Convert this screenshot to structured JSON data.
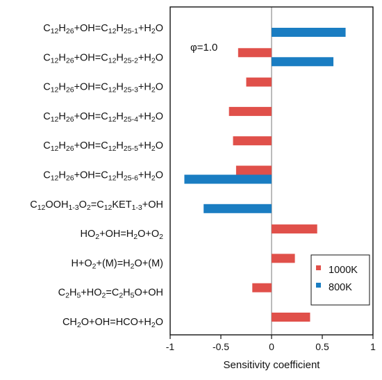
{
  "chart_data": {
    "type": "bar",
    "orientation": "horizontal",
    "title": "",
    "xlabel": "Sensitivity coefficient",
    "ylabel": "",
    "xlim": [
      -1,
      1
    ],
    "xticks": [
      "-1",
      "-0.5",
      "0",
      "0.5",
      "1"
    ],
    "annotation": "φ=1.0",
    "legend_position": "bottom-right",
    "categories": [
      [
        {
          "t": "C"
        },
        {
          "t": "12",
          "s": "sub"
        },
        {
          "t": "H"
        },
        {
          "t": "26",
          "s": "sub"
        },
        {
          "t": "+OH=C"
        },
        {
          "t": "12",
          "s": "sub"
        },
        {
          "t": "H"
        },
        {
          "t": "25-1",
          "s": "sub"
        },
        {
          "t": "+H"
        },
        {
          "t": "2",
          "s": "sub"
        },
        {
          "t": "O"
        }
      ],
      [
        {
          "t": "C"
        },
        {
          "t": "12",
          "s": "sub"
        },
        {
          "t": "H"
        },
        {
          "t": "26",
          "s": "sub"
        },
        {
          "t": "+OH=C"
        },
        {
          "t": "12",
          "s": "sub"
        },
        {
          "t": "H"
        },
        {
          "t": "25-2",
          "s": "sub"
        },
        {
          "t": "+H"
        },
        {
          "t": "2",
          "s": "sub"
        },
        {
          "t": "O"
        }
      ],
      [
        {
          "t": "C"
        },
        {
          "t": "12",
          "s": "sub"
        },
        {
          "t": "H"
        },
        {
          "t": "26",
          "s": "sub"
        },
        {
          "t": "+OH=C"
        },
        {
          "t": "12",
          "s": "sub"
        },
        {
          "t": "H"
        },
        {
          "t": "25-3",
          "s": "sub"
        },
        {
          "t": "+H"
        },
        {
          "t": "2",
          "s": "sub"
        },
        {
          "t": "O"
        }
      ],
      [
        {
          "t": "C"
        },
        {
          "t": "12",
          "s": "sub"
        },
        {
          "t": "H"
        },
        {
          "t": "26",
          "s": "sub"
        },
        {
          "t": "+OH=C"
        },
        {
          "t": "12",
          "s": "sub"
        },
        {
          "t": "H"
        },
        {
          "t": "25-4",
          "s": "sub"
        },
        {
          "t": "+H"
        },
        {
          "t": "2",
          "s": "sub"
        },
        {
          "t": "O"
        }
      ],
      [
        {
          "t": "C"
        },
        {
          "t": "12",
          "s": "sub"
        },
        {
          "t": "H"
        },
        {
          "t": "26",
          "s": "sub"
        },
        {
          "t": "+OH=C"
        },
        {
          "t": "12",
          "s": "sub"
        },
        {
          "t": "H"
        },
        {
          "t": "25-5",
          "s": "sub"
        },
        {
          "t": "+H"
        },
        {
          "t": "2",
          "s": "sub"
        },
        {
          "t": "O"
        }
      ],
      [
        {
          "t": "C"
        },
        {
          "t": "12",
          "s": "sub"
        },
        {
          "t": "H"
        },
        {
          "t": "26",
          "s": "sub"
        },
        {
          "t": "+OH=C"
        },
        {
          "t": "12",
          "s": "sub"
        },
        {
          "t": "H"
        },
        {
          "t": "25-6",
          "s": "sub"
        },
        {
          "t": "+H"
        },
        {
          "t": "2",
          "s": "sub"
        },
        {
          "t": "O"
        }
      ],
      [
        {
          "t": "C"
        },
        {
          "t": "12",
          "s": "sub"
        },
        {
          "t": "OOH"
        },
        {
          "t": "1-3",
          "s": "sub"
        },
        {
          "t": "O"
        },
        {
          "t": "2",
          "s": "sub"
        },
        {
          "t": "=C"
        },
        {
          "t": "12",
          "s": "sub"
        },
        {
          "t": "KET"
        },
        {
          "t": "1-3",
          "s": "sub"
        },
        {
          "t": "+OH"
        }
      ],
      [
        {
          "t": "HO"
        },
        {
          "t": "2",
          "s": "sub"
        },
        {
          "t": "+OH=H"
        },
        {
          "t": "2",
          "s": "sub"
        },
        {
          "t": "O+O"
        },
        {
          "t": "2",
          "s": "sub"
        }
      ],
      [
        {
          "t": "H+O"
        },
        {
          "t": "2",
          "s": "sub"
        },
        {
          "t": "+(M)=H"
        },
        {
          "t": "2",
          "s": "sub"
        },
        {
          "t": "O+(M)"
        }
      ],
      [
        {
          "t": "C"
        },
        {
          "t": "2",
          "s": "sub"
        },
        {
          "t": "H"
        },
        {
          "t": "5",
          "s": "sub"
        },
        {
          "t": "+HO"
        },
        {
          "t": "2",
          "s": "sub"
        },
        {
          "t": "=C"
        },
        {
          "t": "2",
          "s": "sub"
        },
        {
          "t": "H"
        },
        {
          "t": "5",
          "s": "sub"
        },
        {
          "t": "O+OH"
        }
      ],
      [
        {
          "t": "CH"
        },
        {
          "t": "2",
          "s": "sub"
        },
        {
          "t": "O+OH=HCO+H"
        },
        {
          "t": "2",
          "s": "sub"
        },
        {
          "t": "O"
        }
      ]
    ],
    "series": [
      {
        "name": "1000K",
        "color": "#e0504a",
        "values": [
          null,
          -0.33,
          -0.25,
          -0.42,
          -0.38,
          -0.35,
          null,
          0.45,
          0.23,
          -0.19,
          0.38
        ]
      },
      {
        "name": "800K",
        "color": "#1a7dc2",
        "values": [
          0.73,
          0.61,
          null,
          null,
          null,
          -0.86,
          -0.67,
          null,
          null,
          null,
          null
        ]
      }
    ]
  }
}
